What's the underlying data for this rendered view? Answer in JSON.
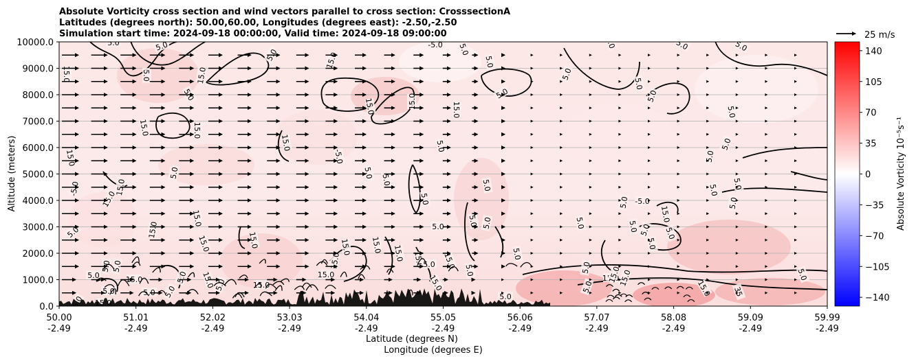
{
  "chart_data": {
    "type": "heatmap",
    "title_lines": [
      "Absolute Vorticity cross section and wind vectors parallel to cross section: CrosssectionA",
      "Latitudes (degrees north): 50.00,60.00, Longitudes (degrees east): -2.50,-2.50",
      "Simulation start time: 2024-09-18 00:00:00, Valid time: 2024-09-18 09:00:00"
    ],
    "xlabel": "Latitude (degrees N)",
    "xlabel2": "Longitude (degrees E)",
    "ylabel": "Altitude (meters)",
    "xlim": [
      50.0,
      59.99
    ],
    "ylim": [
      0,
      10000
    ],
    "x_ticks": [
      {
        "lat": "50.00",
        "lon": "-2.49"
      },
      {
        "lat": "51.01",
        "lon": "-2.49"
      },
      {
        "lat": "52.02",
        "lon": "-2.49"
      },
      {
        "lat": "53.03",
        "lon": "-2.49"
      },
      {
        "lat": "54.04",
        "lon": "-2.49"
      },
      {
        "lat": "55.05",
        "lon": "-2.49"
      },
      {
        "lat": "56.06",
        "lon": "-2.49"
      },
      {
        "lat": "57.07",
        "lon": "-2.49"
      },
      {
        "lat": "58.08",
        "lon": "-2.49"
      },
      {
        "lat": "59.09",
        "lon": "-2.49"
      },
      {
        "lat": "59.99",
        "lon": "-2.49"
      }
    ],
    "y_ticks": [
      "0.0",
      "1000.0",
      "2000.0",
      "3000.0",
      "4000.0",
      "5000.0",
      "6000.0",
      "7000.0",
      "8000.0",
      "9000.0",
      "10000.0"
    ],
    "grid": "horizontal",
    "colorbar": {
      "label": "Absolute Vorticity 10⁻⁵s⁻¹",
      "range": [
        -150,
        150
      ],
      "ticks": [
        "−140",
        "−105",
        "−70",
        "−35",
        "0",
        "35",
        "70",
        "105",
        "140"
      ],
      "colors": [
        "#0000ff",
        "#ffffff",
        "#ff0000"
      ]
    },
    "quiver_key": {
      "label": "25 m/s",
      "speed": 25
    },
    "contour_levels": [
      "5.0",
      "15.0",
      "35",
      "-5.0"
    ]
  }
}
